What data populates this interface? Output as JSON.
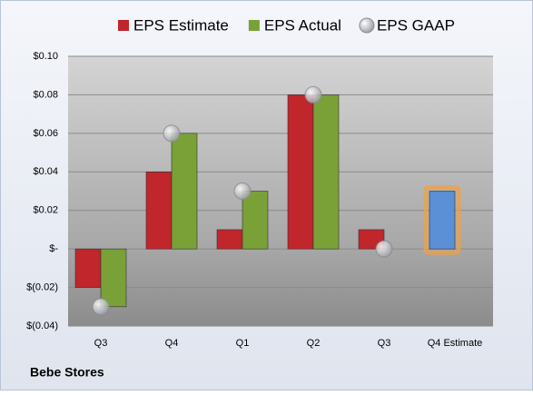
{
  "chart_data": {
    "type": "bar",
    "title": "Bebe Stores",
    "categories": [
      "Q3",
      "Q4",
      "Q1",
      "Q2",
      "Q3",
      "Q4 Estimate"
    ],
    "series": [
      {
        "name": "EPS Estimate",
        "color": "#c0262c",
        "colors": [
          "#c0262c",
          "#c0262c",
          "#c0262c",
          "#c0262c",
          "#c0262c",
          "#5b8fd6"
        ],
        "values": [
          -0.02,
          0.04,
          0.01,
          0.08,
          0.01,
          0.03
        ]
      },
      {
        "name": "EPS Actual",
        "color": "#7aa038",
        "values": [
          -0.03,
          0.06,
          0.03,
          0.08,
          null,
          null
        ]
      },
      {
        "name": "EPS GAAP",
        "color": "#b8b8c0",
        "marker": "circle",
        "values": [
          -0.03,
          0.06,
          0.03,
          0.08,
          0.0,
          null
        ]
      }
    ],
    "ylim": [
      -0.04,
      0.1
    ],
    "yticks": [
      {
        "value": -0.04,
        "label": "$(0.04)"
      },
      {
        "value": -0.02,
        "label": "$(0.02)"
      },
      {
        "value": 0,
        "label": "$-"
      },
      {
        "value": 0.02,
        "label": "$0.02"
      },
      {
        "value": 0.04,
        "label": "$0.04"
      },
      {
        "value": 0.06,
        "label": "$0.06"
      },
      {
        "value": 0.08,
        "label": "$0.08"
      },
      {
        "value": 0.1,
        "label": "$0.10"
      }
    ],
    "grid": true,
    "legend": "top"
  }
}
